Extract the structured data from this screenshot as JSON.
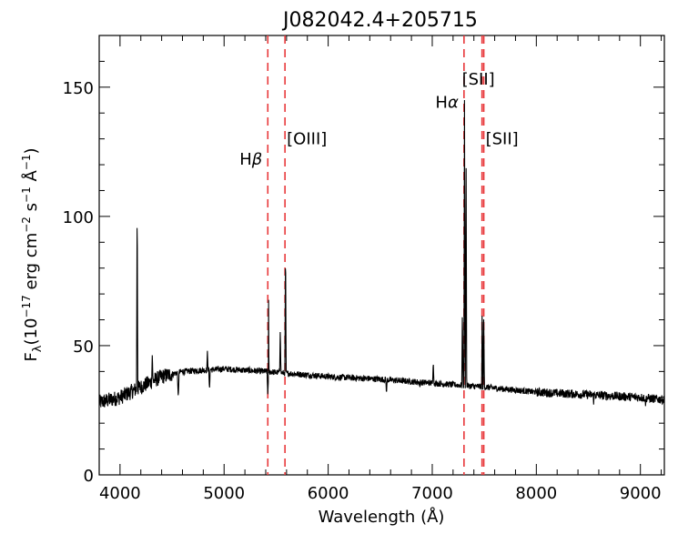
{
  "chart_data": {
    "type": "line",
    "title": "J082042.4+205715",
    "xlabel": "Wavelength (Å)",
    "ylabel_parts": {
      "f": "F",
      "lambda": "λ",
      "open": "(10",
      "exp1": "−17",
      "erg": " erg cm",
      "exp2": "−2",
      "s": " s",
      "exp3": "−1",
      "ang": " Å",
      "exp4": "−1",
      "close": ")"
    },
    "xlim": [
      3800,
      9230
    ],
    "ylim": [
      0,
      170
    ],
    "xticks": [
      4000,
      5000,
      6000,
      7000,
      8000,
      9000
    ],
    "yticks": [
      0,
      50,
      100,
      150
    ],
    "grid": false,
    "line_color": "#000000",
    "marker_color": "#e8383b",
    "vlines": [
      {
        "name": "hbeta",
        "x": 5420,
        "label_main": "H",
        "label_greek": "β",
        "label_y": 120
      },
      {
        "name": "oiii",
        "x": 5585,
        "label_main": "[OIII]",
        "label_greek": "",
        "label_y": 128
      },
      {
        "name": "halpha",
        "x": 7305,
        "label_main": "H",
        "label_greek": "α",
        "label_y": 142
      },
      {
        "name": "sii-a",
        "x": 7478,
        "label_main": "[SII]",
        "label_greek": "",
        "label_y": 151
      },
      {
        "name": "sii-b",
        "x": 7495,
        "label_main": "[SII]",
        "label_greek": "",
        "label_y": 128
      }
    ],
    "series": [
      {
        "continuum_knots": [
          [
            3800,
            28
          ],
          [
            4000,
            30
          ],
          [
            4200,
            34
          ],
          [
            4400,
            38
          ],
          [
            4600,
            40
          ],
          [
            5000,
            41
          ],
          [
            5400,
            40
          ],
          [
            5700,
            39
          ],
          [
            6000,
            38
          ],
          [
            6500,
            37
          ],
          [
            7000,
            35.5
          ],
          [
            7500,
            34
          ],
          [
            8000,
            32
          ],
          [
            8500,
            31
          ],
          [
            9000,
            30
          ],
          [
            9230,
            29
          ]
        ],
        "emission_lines": [
          {
            "x": 4165,
            "peak": 108
          },
          {
            "x": 4310,
            "peak": 47
          },
          {
            "x": 4840,
            "peak": 48
          },
          {
            "x": 5425,
            "peak": 89
          },
          {
            "x": 5540,
            "peak": 57
          },
          {
            "x": 5590,
            "peak": 90
          },
          {
            "x": 7010,
            "peak": 44
          },
          {
            "x": 7290,
            "peak": 65
          },
          {
            "x": 7310,
            "peak": 145
          },
          {
            "x": 7325,
            "peak": 128
          },
          {
            "x": 7480,
            "peak": 67
          },
          {
            "x": 7495,
            "peak": 62
          }
        ],
        "absorption_lines": [
          {
            "x": 4560,
            "depth": 30
          },
          {
            "x": 4860,
            "depth": 33
          },
          {
            "x": 5420,
            "depth": 31
          },
          {
            "x": 6560,
            "depth": 31
          },
          {
            "x": 6880,
            "depth": 33
          },
          {
            "x": 8550,
            "depth": 27
          },
          {
            "x": 9050,
            "depth": 26
          }
        ]
      }
    ]
  }
}
